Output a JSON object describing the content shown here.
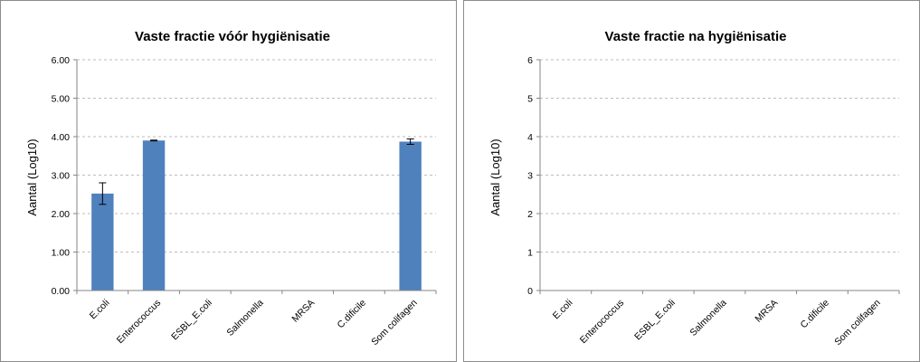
{
  "chart_data": [
    {
      "type": "bar",
      "title": "Vaste fractie vóór hygiënisatie",
      "ylabel": "Aantal (Log10)",
      "xlabel": "",
      "ylim": [
        0,
        6
      ],
      "yticks": [
        "0.00",
        "1.00",
        "2.00",
        "3.00",
        "4.00",
        "5.00",
        "6.00"
      ],
      "grid": true,
      "legend": "none",
      "color": "#4f81bd",
      "categories": [
        "E.coli",
        "Enterococcus",
        "ESBL_E.coli",
        "Salmonella",
        "MRSA",
        "C.dificile",
        "Som colifagen"
      ],
      "values": [
        2.52,
        3.9,
        0,
        0,
        0,
        0,
        3.87
      ],
      "errors": [
        0.28,
        0.01,
        0,
        0,
        0,
        0,
        0.07
      ]
    },
    {
      "type": "bar",
      "title": "Vaste fractie na hygiënisatie",
      "ylabel": "Aantal (Log10)",
      "xlabel": "",
      "ylim": [
        0,
        6
      ],
      "yticks": [
        "0",
        "1",
        "2",
        "3",
        "4",
        "5",
        "6"
      ],
      "grid": true,
      "legend": "none",
      "color": "#4f81bd",
      "categories": [
        "E.coli",
        "Enterococcus",
        "ESBL_E.coli",
        "Salmonella",
        "MRSA",
        "C.dificile",
        "Som colifagen"
      ],
      "values": [
        0,
        0,
        0,
        0,
        0,
        0,
        0
      ],
      "errors": [
        0,
        0,
        0,
        0,
        0,
        0,
        0
      ]
    }
  ]
}
